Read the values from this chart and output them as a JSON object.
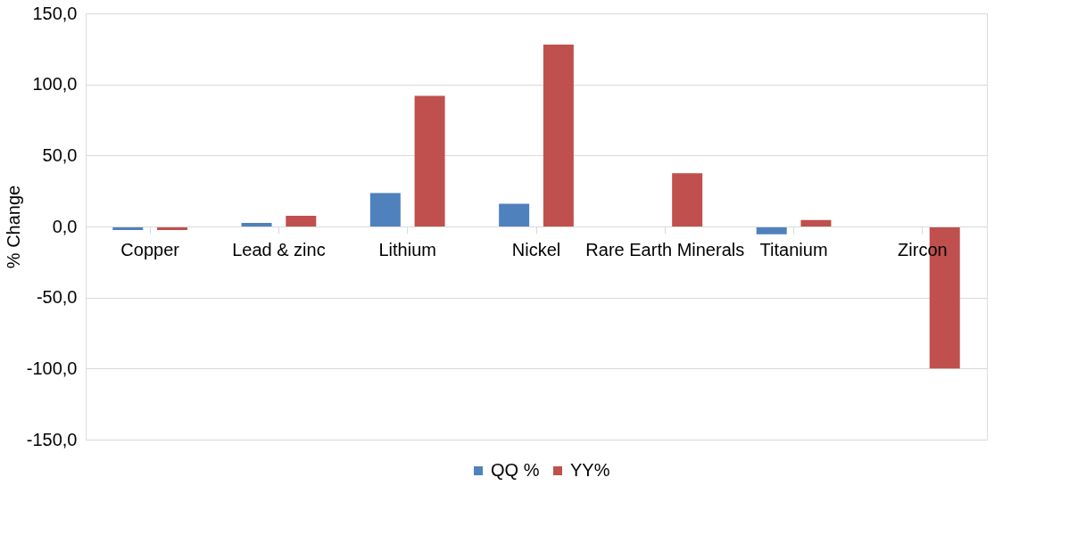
{
  "chart_data": {
    "type": "bar",
    "ylabel": "% Change",
    "categories": [
      "Copper",
      "Lead & zinc",
      "Lithium",
      "Nickel",
      "Rare Earth Minerals",
      "Titanium",
      "Zircon"
    ],
    "series": [
      {
        "name": "QQ %",
        "color": "#4f81bd",
        "values": [
          -2.5,
          2.5,
          23.5,
          16.0,
          null,
          -5.5,
          null
        ]
      },
      {
        "name": "YY%",
        "color": "#c0504d",
        "values": [
          -2.5,
          7.5,
          92.0,
          128.0,
          37.5,
          4.5,
          -100.0
        ]
      }
    ],
    "ylim": [
      -150,
      150
    ],
    "yticks": [
      {
        "value": -150,
        "label": "-150,0"
      },
      {
        "value": -100,
        "label": "-100,0"
      },
      {
        "value": -50,
        "label": "-50,0"
      },
      {
        "value": 0,
        "label": "0,0"
      },
      {
        "value": 50,
        "label": "50,0"
      },
      {
        "value": 100,
        "label": "100,0"
      },
      {
        "value": 150,
        "label": "150,0"
      }
    ],
    "grid": "y",
    "legend": "bottom"
  }
}
